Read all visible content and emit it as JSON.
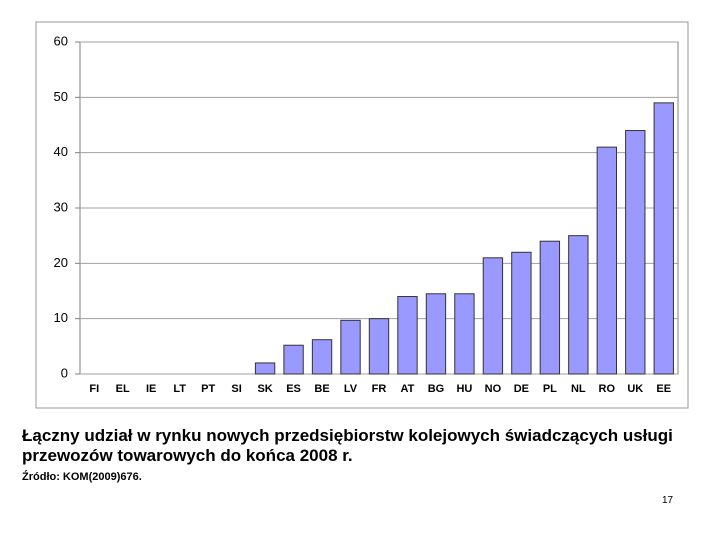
{
  "chart_data": {
    "type": "bar",
    "categories": [
      "FI",
      "EL",
      "IE",
      "LT",
      "PT",
      "SI",
      "SK",
      "ES",
      "BE",
      "LV",
      "FR",
      "AT",
      "BG",
      "HU",
      "NO",
      "DE",
      "PL",
      "NL",
      "RO",
      "UK",
      "EE"
    ],
    "values": [
      0,
      0,
      0,
      0,
      0,
      0,
      2,
      5.2,
      6.2,
      9.7,
      10,
      14,
      14.5,
      14.5,
      21,
      22,
      24,
      25,
      41,
      44,
      49
    ],
    "color": "#9999ff",
    "ylim": [
      0,
      60
    ],
    "yticks": [
      0,
      10,
      20,
      30,
      40,
      50,
      60
    ],
    "grid": true
  },
  "caption": [
    "Łączny udział w rynku nowych przedsiębiorstw kolejowych świadczących usługi",
    "przewozów towarowych do końca 2008 r."
  ],
  "source": "Źródło: KOM(2009)676.",
  "page_number": 17
}
